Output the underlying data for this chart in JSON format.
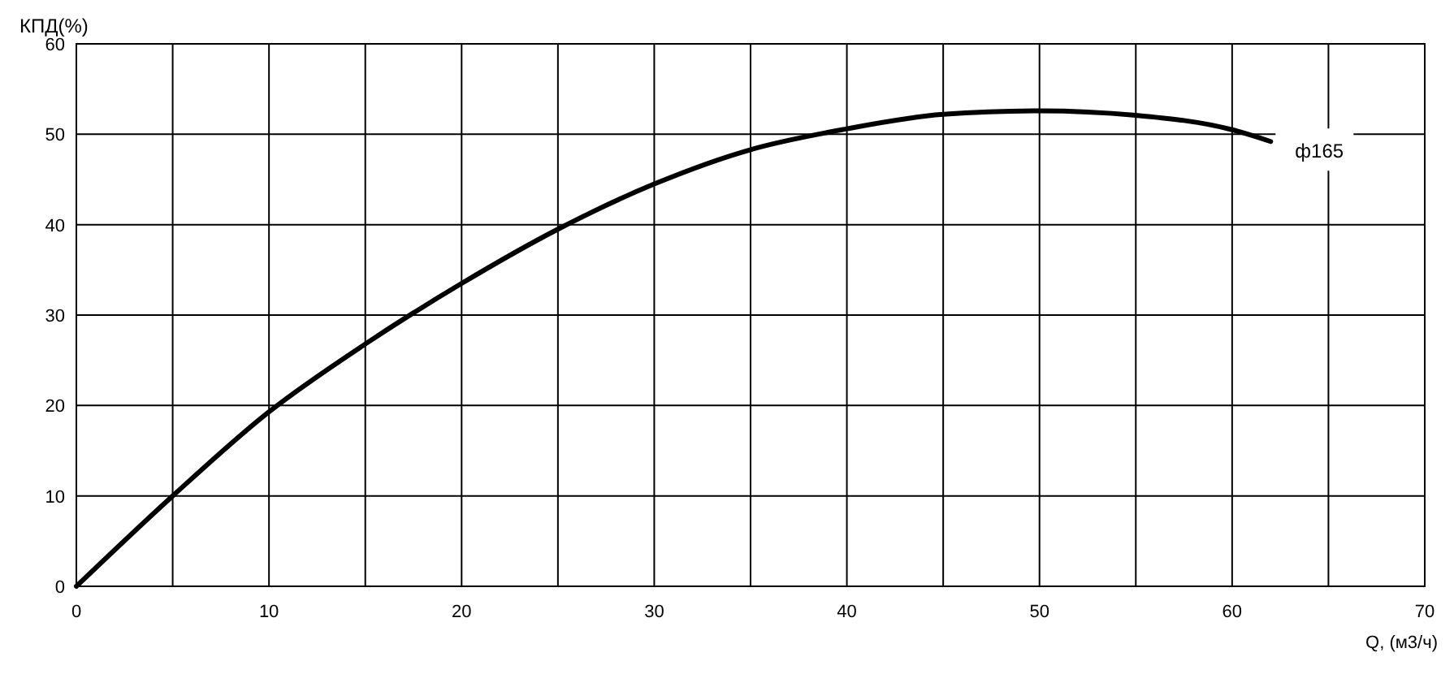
{
  "chart_data": {
    "type": "line",
    "xlabel": "Q, (м3/ч)",
    "ylabel": "КПД(%)",
    "x": [
      0,
      5,
      10,
      15,
      20,
      25,
      30,
      35,
      40,
      45,
      50,
      55,
      60,
      62
    ],
    "series": [
      {
        "color": "#000000",
        "values": [
          0,
          10,
          19.3,
          26.8,
          33.5,
          39.5,
          44.5,
          48.3,
          50.6,
          52.2,
          52.6,
          52.1,
          50.5,
          49.2
        ]
      }
    ],
    "xlim": [
      0,
      70
    ],
    "xticks": [
      0,
      {
        "value": 5,
        "label": null
      },
      10,
      {
        "value": 15,
        "label": null
      },
      20,
      {
        "value": 25,
        "label": null
      },
      30,
      {
        "value": 35,
        "label": null
      },
      40,
      {
        "value": 45,
        "label": null
      },
      50,
      {
        "value": 55,
        "label": null
      },
      60,
      {
        "value": 65,
        "label": null
      },
      70
    ],
    "ylim": [
      0,
      60
    ],
    "yticks": [
      0,
      10,
      20,
      30,
      40,
      50,
      60
    ],
    "grid": true,
    "annotations": [
      {
        "text": "ф165",
        "x": 62,
        "y": 49.2
      }
    ]
  }
}
